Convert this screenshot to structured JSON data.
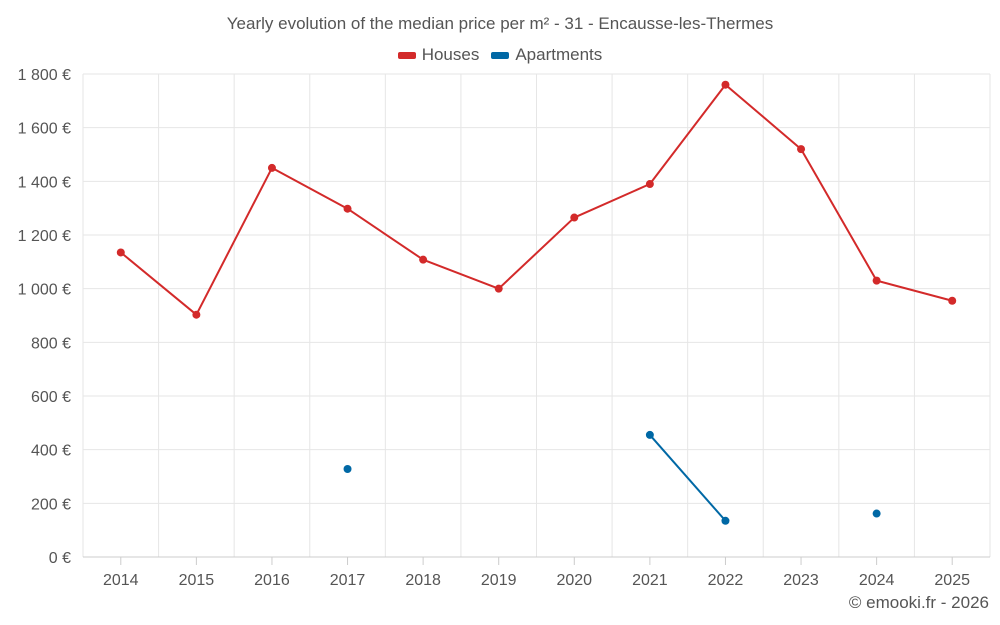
{
  "chart_data": {
    "type": "line",
    "title": "Yearly evolution of the median price per m² - 31 - Encausse-les-Thermes",
    "categories": [
      "2014",
      "2015",
      "2016",
      "2017",
      "2018",
      "2019",
      "2020",
      "2021",
      "2022",
      "2023",
      "2024",
      "2025"
    ],
    "yticks": [
      "0 €",
      "200 €",
      "400 €",
      "600 €",
      "800 €",
      "1 000 €",
      "1 200 €",
      "1 400 €",
      "1 600 €",
      "1 800 €"
    ],
    "ylim": [
      0,
      1800
    ],
    "grid": true,
    "legend_position": "top",
    "series": [
      {
        "name": "Houses",
        "color": "#d32a2a",
        "values": [
          1135,
          903,
          1450,
          1298,
          1108,
          1000,
          1265,
          1390,
          1760,
          1520,
          1030,
          955
        ]
      },
      {
        "name": "Apartments",
        "color": "#0068a5",
        "values": [
          null,
          null,
          null,
          328,
          null,
          null,
          null,
          455,
          135,
          null,
          162,
          null
        ]
      }
    ]
  },
  "footer": {
    "credit": "© emooki.fr - 2026"
  }
}
